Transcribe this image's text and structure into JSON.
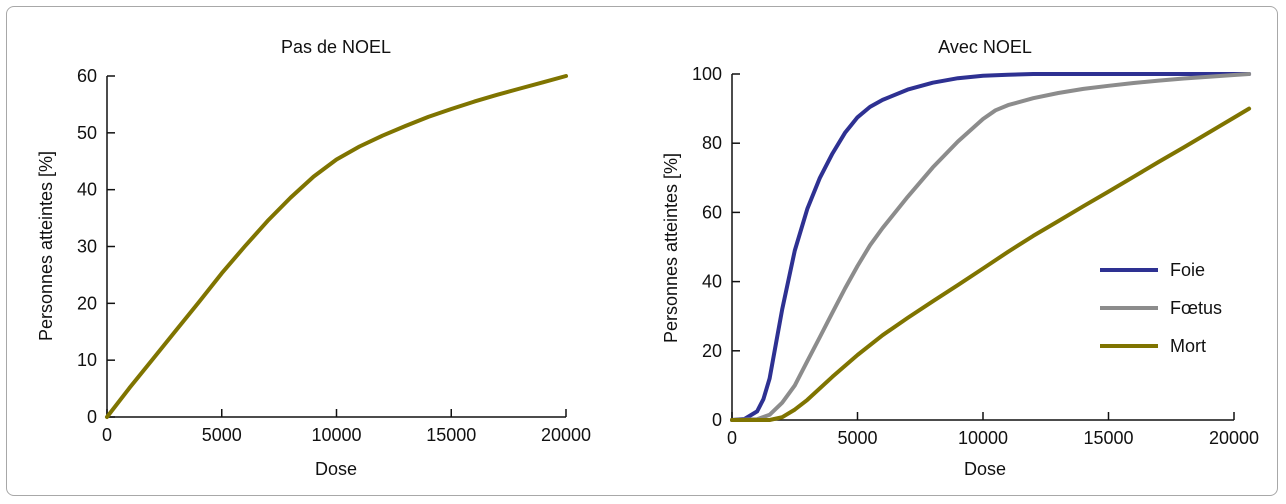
{
  "chart_data": [
    {
      "type": "line",
      "title": "Pas de NOEL",
      "xlabel": "Dose",
      "ylabel": "Personnes atteintes [%]",
      "xlim": [
        0,
        20000
      ],
      "ylim": [
        0,
        60
      ],
      "xticks": [
        0,
        5000,
        10000,
        15000,
        20000
      ],
      "xtick_labels": [
        "0",
        "5000",
        "10000",
        "15000",
        "20000"
      ],
      "yticks": [
        0,
        10,
        20,
        30,
        40,
        50,
        60
      ],
      "ytick_labels": [
        "0",
        "10",
        "20",
        "30",
        "40",
        "50",
        "60"
      ],
      "grid": false,
      "series": [
        {
          "color": "#7f7400",
          "x": [
            0,
            1000,
            2000,
            3000,
            4000,
            5000,
            6000,
            7000,
            8000,
            9000,
            10000,
            11000,
            12000,
            13000,
            14000,
            15000,
            16000,
            17000,
            18000,
            19000,
            20000
          ],
          "y": [
            0,
            5.2,
            10.2,
            15.2,
            20.2,
            25.3,
            30,
            34.5,
            38.6,
            42.3,
            45.3,
            47.6,
            49.5,
            51.2,
            52.8,
            54.2,
            55.5,
            56.7,
            57.8,
            58.9,
            60
          ]
        }
      ]
    },
    {
      "type": "line",
      "title": "Avec NOEL",
      "xlabel": "Dose",
      "ylabel": "Personnes atteintes [%]",
      "xlim": [
        0,
        20000
      ],
      "ylim": [
        0,
        100
      ],
      "xticks": [
        0,
        5000,
        10000,
        15000,
        20000
      ],
      "xtick_labels": [
        "0",
        "5000",
        "10000",
        "15000",
        "20000"
      ],
      "yticks": [
        0,
        20,
        40,
        60,
        80,
        100
      ],
      "ytick_labels": [
        "0",
        "20",
        "40",
        "60",
        "80",
        "100"
      ],
      "grid": false,
      "legend_position": "right",
      "series": [
        {
          "name": "Foie",
          "color": "#2e3192",
          "x": [
            0,
            500,
            1000,
            1250,
            1500,
            1750,
            2000,
            2500,
            3000,
            3500,
            4000,
            4500,
            5000,
            5500,
            6000,
            7000,
            8000,
            9000,
            10000,
            11000,
            12000,
            14000,
            16000,
            18000,
            20000,
            20600
          ],
          "y": [
            0,
            0.3,
            2.5,
            6,
            12,
            22,
            32,
            49,
            61,
            70,
            77,
            83,
            87.5,
            90.5,
            92.5,
            95.5,
            97.5,
            98.8,
            99.5,
            99.8,
            100,
            100,
            100,
            100,
            100,
            100
          ]
        },
        {
          "name": "Fœtus",
          "color": "#8c8c8c",
          "x": [
            0,
            1000,
            1500,
            2000,
            2500,
            3000,
            3500,
            4000,
            4500,
            5000,
            5500,
            6000,
            7000,
            8000,
            9000,
            10000,
            10500,
            11000,
            12000,
            13000,
            14000,
            15000,
            16000,
            17000,
            18000,
            19000,
            20000,
            20600
          ],
          "y": [
            0,
            0.2,
            1.5,
            5,
            10,
            17,
            24,
            31,
            38,
            44.5,
            50.5,
            55.5,
            64.5,
            73,
            80.5,
            87,
            89.5,
            91,
            93,
            94.5,
            95.7,
            96.6,
            97.4,
            98.1,
            98.7,
            99.2,
            99.7,
            100
          ]
        },
        {
          "name": "Mort",
          "color": "#7f7400",
          "x": [
            0,
            1500,
            2000,
            2500,
            3000,
            4000,
            5000,
            6000,
            7000,
            8000,
            9000,
            10000,
            11000,
            12000,
            13000,
            14000,
            15000,
            16000,
            17000,
            18000,
            19000,
            20000,
            20600
          ],
          "y": [
            0,
            0,
            0.8,
            3,
            5.8,
            12.5,
            18.8,
            24.5,
            29.5,
            34.3,
            39,
            43.8,
            48.6,
            53.2,
            57.5,
            61.8,
            66,
            70.3,
            74.6,
            78.8,
            83.1,
            87.4,
            90
          ]
        }
      ]
    }
  ]
}
